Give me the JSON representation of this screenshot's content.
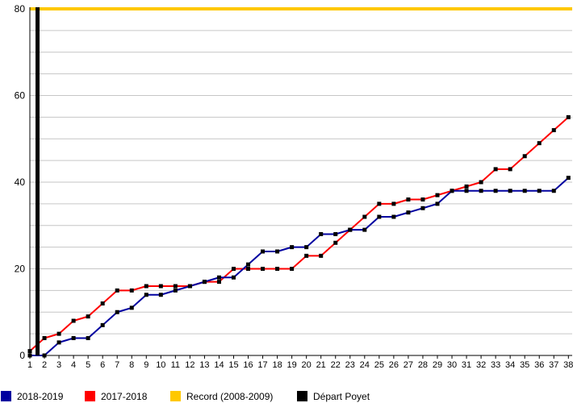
{
  "chart_data": {
    "type": "line",
    "title": "",
    "xlabel": "",
    "ylabel": "",
    "x_categories": [
      1,
      2,
      3,
      4,
      5,
      6,
      7,
      8,
      9,
      10,
      11,
      12,
      13,
      14,
      15,
      16,
      17,
      18,
      19,
      20,
      21,
      22,
      23,
      24,
      25,
      26,
      27,
      28,
      29,
      30,
      31,
      32,
      33,
      34,
      35,
      36,
      37,
      38
    ],
    "ylim": [
      0,
      80
    ],
    "y_tick_labels": [
      0,
      20,
      40,
      60,
      80
    ],
    "grid_step": 5,
    "grid_on": true,
    "legend_position": "bottom",
    "marker": "black-square",
    "series": [
      {
        "name": "2018-2019",
        "color": "#0000A0",
        "values": [
          0,
          0,
          3,
          4,
          4,
          7,
          10,
          11,
          14,
          14,
          15,
          16,
          17,
          18,
          18,
          21,
          24,
          24,
          25,
          25,
          28,
          28,
          29,
          29,
          32,
          32,
          33,
          34,
          35,
          38,
          38,
          38,
          38,
          38,
          38,
          38,
          38,
          41
        ]
      },
      {
        "name": "2017-2018",
        "color": "#FF0000",
        "values": [
          1,
          4,
          5,
          8,
          9,
          12,
          15,
          15,
          16,
          16,
          16,
          16,
          17,
          17,
          20,
          20,
          20,
          20,
          20,
          23,
          23,
          26,
          29,
          32,
          35,
          35,
          36,
          36,
          37,
          38,
          39,
          40,
          43,
          43,
          46,
          49,
          52,
          55
        ]
      }
    ],
    "reference_lines": [
      {
        "name": "Record (2008-2009)",
        "orientation": "horizontal",
        "value": 80,
        "color": "#FFC800"
      },
      {
        "name": "Départ Poyet",
        "orientation": "vertical",
        "value": 1.5,
        "color": "#000000"
      }
    ]
  },
  "legend": {
    "items": [
      {
        "label": "2018-2019",
        "color": "#0000A0"
      },
      {
        "label": "2017-2018",
        "color": "#FF0000"
      },
      {
        "label": "Record (2008-2009)",
        "color": "#FFC800"
      },
      {
        "label": "Départ Poyet",
        "color": "#000000"
      }
    ]
  },
  "colors": {
    "grid": "#C6C6C6",
    "axis": "#000000",
    "text": "#000000",
    "background": "#FFFFFF"
  }
}
